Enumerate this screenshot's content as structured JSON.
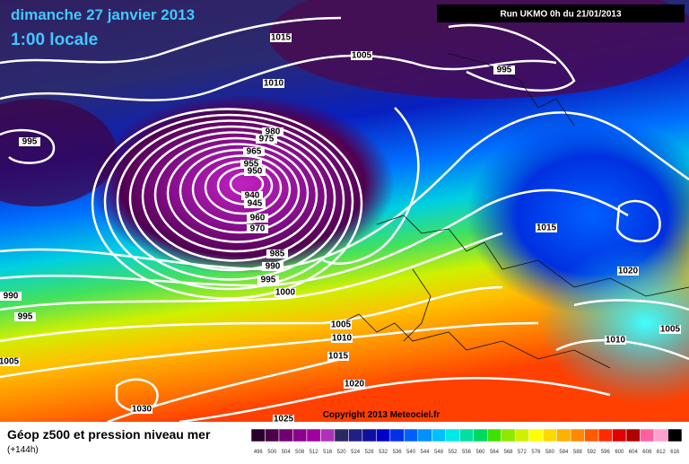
{
  "header": {
    "title": "dimanche 27 janvier 2013",
    "time": "1:00 locale",
    "run": "Run UKMO 0h du 21/01/2013"
  },
  "isobar_labels": [
    "1015",
    "1005",
    "995",
    "1010",
    "995",
    "980",
    "975",
    "965",
    "955",
    "950",
    "940",
    "945",
    "960",
    "970",
    "1015",
    "985",
    "990",
    "995",
    "1000",
    "1020",
    "990",
    "995",
    "1005",
    "1010",
    "1015",
    "1010",
    "1005",
    "1005",
    "1020",
    "1030",
    "1025"
  ],
  "copyright": "Copyright 2013 Meteociel.fr",
  "footer": {
    "title": "Géop z500 et pression niveau mer",
    "lead": "(+144h)"
  },
  "colorbar": {
    "labels": [
      "496",
      "500",
      "504",
      "508",
      "512",
      "516",
      "520",
      "524",
      "528",
      "532",
      "536",
      "540",
      "544",
      "548",
      "552",
      "556",
      "560",
      "564",
      "568",
      "572",
      "576",
      "580",
      "584",
      "588",
      "592",
      "596",
      "600",
      "604",
      "608",
      "612",
      "616"
    ],
    "colors": [
      "#2a002a",
      "#4a004a",
      "#700070",
      "#8a008a",
      "#a000a0",
      "#b030b8",
      "#2a2a60",
      "#202080",
      "#1010a0",
      "#0000c8",
      "#0030e8",
      "#0060ff",
      "#0090ff",
      "#00c0ff",
      "#00e8e8",
      "#00e0a0",
      "#00d860",
      "#40e000",
      "#90e800",
      "#d0f000",
      "#ffff00",
      "#ffd800",
      "#ffb000",
      "#ff8800",
      "#ff5a00",
      "#ff2a00",
      "#e00000",
      "#b00000",
      "#ff60a0",
      "#ffa0d0",
      "#000000"
    ]
  }
}
